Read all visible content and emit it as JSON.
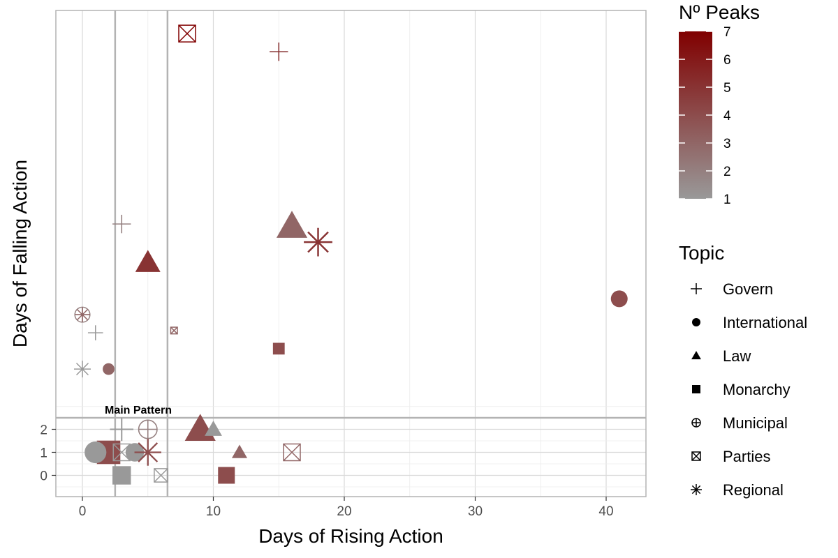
{
  "chart_data": {
    "type": "scatter",
    "xlabel": "Days of Rising Action",
    "ylabel": "Days of Falling Action",
    "x_ticks": [
      0,
      10,
      20,
      30,
      40
    ],
    "y_ticks": [
      0,
      1,
      2
    ],
    "xlim": [
      -2,
      43
    ],
    "grid": true,
    "annotation": "Main Pattern",
    "reference_lines": {
      "vertical_x": [
        2.5,
        6.5
      ],
      "horizontal_y": 2.5
    },
    "color_legend": {
      "title": "Nº Peaks",
      "min": 1,
      "max": 7,
      "ticks": [
        "1",
        "2",
        "3",
        "4",
        "5",
        "6",
        "7"
      ],
      "low_color": "#999999",
      "high_color": "#800000"
    },
    "shape_legend": {
      "title": "Topic",
      "items": [
        {
          "label": "Govern",
          "shape": "plus"
        },
        {
          "label": "International",
          "shape": "circle"
        },
        {
          "label": "Law",
          "shape": "triangle"
        },
        {
          "label": "Monarchy",
          "shape": "square"
        },
        {
          "label": "Municipal",
          "shape": "circle-plus"
        },
        {
          "label": "Parties",
          "shape": "square-x"
        },
        {
          "label": "Regional",
          "shape": "asterisk"
        }
      ]
    },
    "points": [
      {
        "topic": "Parties",
        "x": 8,
        "y": 172,
        "peaks": 7,
        "size": 1.0
      },
      {
        "topic": "Govern",
        "x": 15,
        "y": 164,
        "peaks": 5,
        "size": 1.1
      },
      {
        "topic": "Govern",
        "x": 3,
        "y": 88,
        "peaks": 2,
        "size": 1.1
      },
      {
        "topic": "Law",
        "x": 16,
        "y": 87,
        "peaks": 3,
        "size": 1.6
      },
      {
        "topic": "Regional",
        "x": 18,
        "y": 80,
        "peaks": 5,
        "size": 1.7
      },
      {
        "topic": "Law",
        "x": 5,
        "y": 71,
        "peaks": 5,
        "size": 1.3
      },
      {
        "topic": "International",
        "x": 41,
        "y": 55,
        "peaks": 4,
        "size": 1.0
      },
      {
        "topic": "Municipal",
        "x": 0,
        "y": 48,
        "peaks": 2,
        "size": 0.9
      },
      {
        "topic": "Regional",
        "x": 0,
        "y": 48,
        "peaks": 3,
        "size": 0.9
      },
      {
        "topic": "Govern",
        "x": 1,
        "y": 40,
        "peaks": 1,
        "size": 0.9
      },
      {
        "topic": "Parties",
        "x": 7,
        "y": 41,
        "peaks": 3,
        "size": 0.4
      },
      {
        "topic": "Monarchy",
        "x": 15,
        "y": 33,
        "peaks": 4,
        "size": 0.7
      },
      {
        "topic": "Regional",
        "x": 0,
        "y": 24,
        "peaks": 1,
        "size": 1.0
      },
      {
        "topic": "International",
        "x": 2,
        "y": 24,
        "peaks": 3,
        "size": 0.7
      },
      {
        "topic": "Govern",
        "x": 3,
        "y": 2,
        "peaks": 1,
        "size": 1.4
      },
      {
        "topic": "Municipal",
        "x": 5,
        "y": 2,
        "peaks": 2,
        "size": 1.1
      },
      {
        "topic": "Law",
        "x": 9,
        "y": 2,
        "peaks": 4,
        "size": 1.6
      },
      {
        "topic": "Law",
        "x": 10,
        "y": 2,
        "peaks": 1,
        "size": 0.9
      },
      {
        "topic": "Law",
        "x": 12,
        "y": 1,
        "peaks": 3,
        "size": 0.8
      },
      {
        "topic": "Monarchy",
        "x": 2,
        "y": 1,
        "peaks": 4,
        "size": 1.4
      },
      {
        "topic": "International",
        "x": 1,
        "y": 1,
        "peaks": 1,
        "size": 1.3
      },
      {
        "topic": "Parties",
        "x": 3,
        "y": 1,
        "peaks": 1,
        "size": 1.0
      },
      {
        "topic": "International",
        "x": 4,
        "y": 1,
        "peaks": 1,
        "size": 1.1
      },
      {
        "topic": "Regional",
        "x": 5,
        "y": 1,
        "peaks": 4,
        "size": 1.6
      },
      {
        "topic": "Parties",
        "x": 16,
        "y": 1,
        "peaks": 3,
        "size": 1.0
      },
      {
        "topic": "Monarchy",
        "x": 3,
        "y": 0,
        "peaks": 1,
        "size": 1.1
      },
      {
        "topic": "Parties",
        "x": 6,
        "y": 0,
        "peaks": 1,
        "size": 0.8
      },
      {
        "topic": "Monarchy",
        "x": 11,
        "y": 0,
        "peaks": 4,
        "size": 1.0
      }
    ]
  }
}
